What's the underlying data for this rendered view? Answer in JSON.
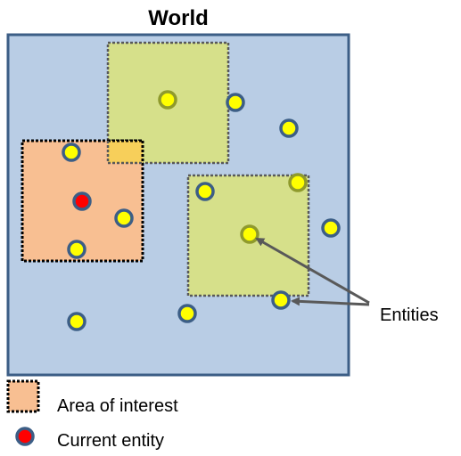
{
  "title": "World",
  "callout_label": "Entities",
  "legend": {
    "area_label": "Area of interest",
    "entity_label": "Current entity"
  },
  "colors": {
    "world_fill": "#b9cde5",
    "world_border": "#3c5e86",
    "aoi_fill": "#f8bf92",
    "visible_fill": "#d6e08a",
    "overlap_fill": "#f7cf5a",
    "entity_fill": "#ffff00",
    "entity_border": "#3c5e86",
    "current_fill": "#ff0000",
    "arrow": "#595959"
  }
}
